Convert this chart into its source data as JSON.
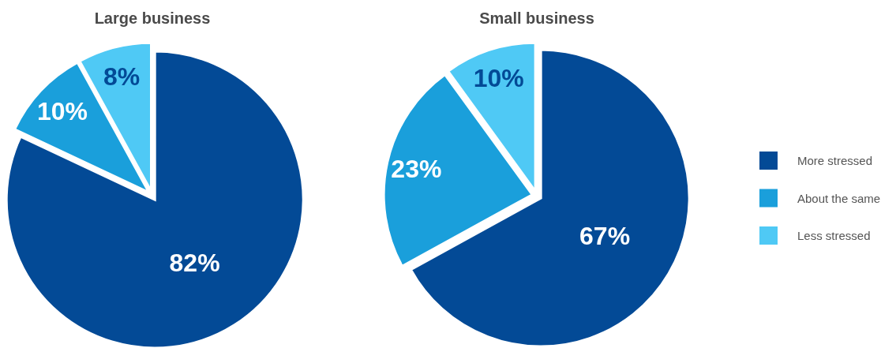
{
  "chart_data": [
    {
      "type": "pie",
      "title": "Large business",
      "categories": [
        "More stressed",
        "About the same",
        "Less stressed"
      ],
      "values": [
        82,
        10,
        8
      ],
      "colors": [
        "#034a96",
        "#1a9fdb",
        "#4fc9f5"
      ],
      "value_labels": [
        "82%",
        "10%",
        "8%"
      ],
      "legend": "right"
    },
    {
      "type": "pie",
      "title": "Small business",
      "categories": [
        null,
        null,
        null
      ],
      "values": [
        67,
        23,
        10
      ],
      "colors": [
        "#034a96",
        "#1a9fdb",
        "#4fc9f5"
      ],
      "value_labels": [
        "67%",
        "23%",
        "10%"
      ],
      "legend": false
    }
  ]
}
